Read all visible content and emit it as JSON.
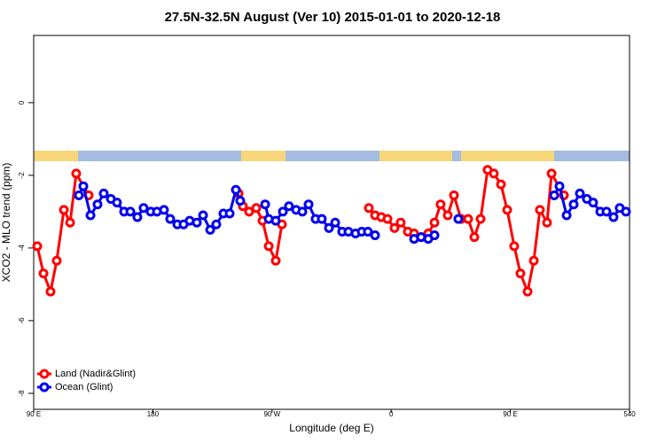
{
  "chart_data": {
    "type": "line",
    "title": "27.5N-32.5N August (Ver 10)   2015-01-01 to 2020-12-18",
    "x_label": "Longitude (deg E)",
    "y_label": "XCO2 - MLO trend (ppm)",
    "xlim": [
      90,
      540
    ],
    "ylim": [
      -8.44,
      1.85
    ],
    "xticks": [
      {
        "value": 90,
        "label": "90 E"
      },
      180,
      {
        "value": 270,
        "label": "90 W"
      },
      {
        "value": 360,
        "label": "0"
      },
      {
        "value": 450,
        "label": "90 E"
      },
      540
    ],
    "yticks": [
      -8,
      -6,
      -4,
      -2,
      0
    ],
    "legend": "bottom-left",
    "series": [
      {
        "name": "Land (Nadir&Glint)",
        "color": "#ff0000",
        "x": [
          92.7,
          97.4,
          102.7,
          107.4,
          112.8,
          117.5,
          122.1,
          131.5,
          null,
          244.7,
          248.0,
          252.7,
          258.1,
          262.8,
          267.5,
          272.8,
          277.5,
          null,
          343.1,
          347.8,
          352.5,
          357.2,
          362.5,
          367.2,
          372.6,
          377.3,
          382.6,
          388.0,
          392.7,
          397.3,
          402.7,
          407.4,
          412.7,
          418.1,
          422.8,
          427.5,
          432.8,
          437.5,
          442.9,
          447.6,
          452.9,
          457.6,
          463.0,
          467.7,
          472.3,
          477.7,
          481.1,
          490.4
        ],
        "values": [
          -3.95,
          -4.7,
          -5.2,
          -4.35,
          -2.95,
          -3.3,
          -1.95,
          -2.55,
          null,
          -2.5,
          -2.85,
          -3.0,
          -2.9,
          -3.25,
          -3.95,
          -4.35,
          -3.35,
          null,
          -2.9,
          -3.1,
          -3.15,
          -3.2,
          -3.45,
          -3.3,
          -3.55,
          -3.6,
          -3.7,
          -3.6,
          -3.3,
          -2.8,
          -3.1,
          -2.55,
          -3.2,
          -3.2,
          -3.7,
          -3.2,
          -1.85,
          -1.95,
          -2.25,
          -2.95,
          -3.95,
          -4.7,
          -5.2,
          -4.35,
          -2.95,
          -3.3,
          -1.95,
          -2.55
        ]
      },
      {
        "name": "Ocean (Glint)",
        "color": "#0000ee",
        "x": [
          124.1,
          127.5,
          132.9,
          138.2,
          142.9,
          148.3,
          152.9,
          158.3,
          163.0,
          168.3,
          173.0,
          178.4,
          183.1,
          188.4,
          193.1,
          198.5,
          203.2,
          207.8,
          213.2,
          217.9,
          223.3,
          227.9,
          233.3,
          238.0,
          242.7,
          246.0,
          null,
          264.8,
          267.5,
          272.8,
          278.2,
          282.8,
          288.2,
          292.9,
          297.6,
          302.9,
          307.6,
          313.0,
          317.7,
          323.0,
          327.7,
          333.1,
          337.8,
          342.4,
          347.8,
          null,
          377.3,
          382.6,
          388.0,
          392.7,
          null,
          410.7,
          null,
          483.1,
          487.1,
          492.5,
          497.8,
          502.5,
          507.8,
          512.5,
          517.9,
          522.6,
          527.9,
          532.6,
          537.3
        ],
        "values": [
          -2.55,
          -2.3,
          -3.1,
          -2.8,
          -2.5,
          -2.65,
          -2.75,
          -3.0,
          -3.0,
          -3.15,
          -2.9,
          -3.0,
          -3.0,
          -2.95,
          -3.2,
          -3.35,
          -3.35,
          -3.25,
          -3.3,
          -3.1,
          -3.5,
          -3.35,
          -3.05,
          -3.05,
          -2.4,
          -2.7,
          null,
          -2.8,
          -3.2,
          -3.25,
          -3.0,
          -2.85,
          -2.95,
          -3.0,
          -2.8,
          -3.2,
          -3.2,
          -3.45,
          -3.3,
          -3.55,
          -3.55,
          -3.6,
          -3.55,
          -3.55,
          -3.65,
          null,
          -3.75,
          -3.7,
          -3.75,
          -3.65,
          null,
          -3.2,
          null,
          -2.55,
          -2.3,
          -3.1,
          -2.8,
          -2.5,
          -2.65,
          -2.75,
          -3.0,
          -3.0,
          -3.15,
          -2.9,
          -3.0
        ]
      }
    ]
  }
}
